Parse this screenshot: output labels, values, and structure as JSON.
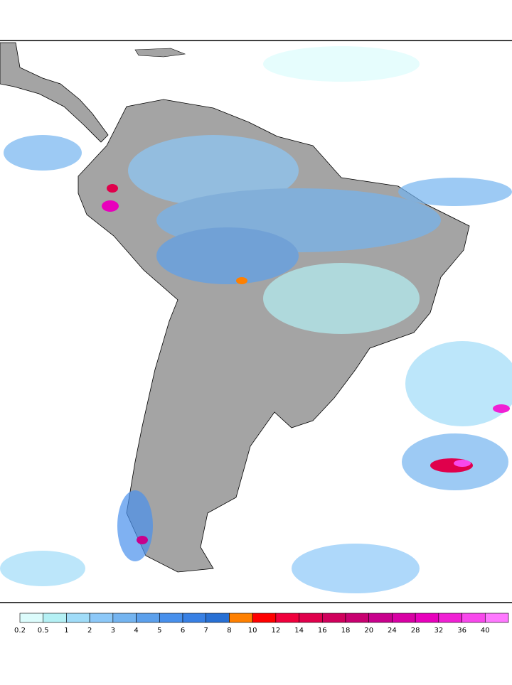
{
  "legend": {
    "labels": [
      0.2,
      0.5,
      1,
      2,
      3,
      4,
      5,
      6,
      7,
      8,
      10,
      12,
      14,
      16,
      18,
      20,
      24,
      28,
      32,
      36,
      40
    ],
    "colors": [
      "#dcfcfc",
      "#b4f0f4",
      "#a0dcf8",
      "#8cc8f8",
      "#74b4f0",
      "#5ca0ec",
      "#4890ec",
      "#3880e4",
      "#2870d4",
      "#ff8000",
      "#ff0000",
      "#f0003c",
      "#e0004c",
      "#d0005c",
      "#c80070",
      "#c8008c",
      "#d800a4",
      "#e800bc",
      "#f020d4",
      "#f848ec",
      "#ff78ff"
    ]
  }
}
